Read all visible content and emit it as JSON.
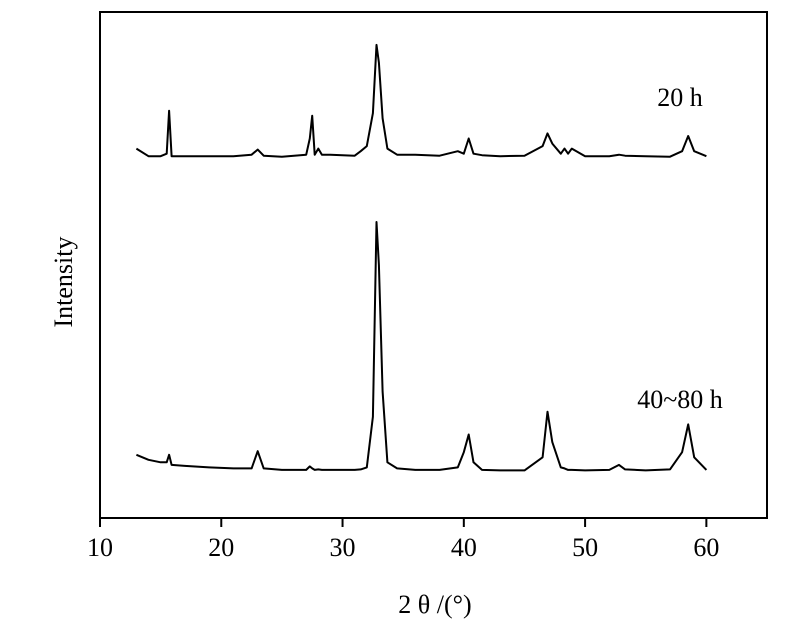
{
  "chart_data": {
    "type": "line",
    "x_label": "2 θ /(°)",
    "y_label": "Intensity",
    "xlim": [
      10,
      65
    ],
    "xticks": [
      10,
      20,
      30,
      40,
      50,
      60
    ],
    "ylim": [
      0,
      100
    ],
    "grid": false,
    "x": [
      13,
      14,
      15,
      15.5,
      15.7,
      15.9,
      17,
      19,
      21,
      22.5,
      23,
      23.5,
      25,
      27,
      27.3,
      27.5,
      27.7,
      28,
      28.3,
      29,
      31,
      31.5,
      32,
      32.5,
      32.8,
      33,
      33.3,
      33.7,
      34.5,
      36,
      38,
      39.5,
      40,
      40.4,
      40.8,
      41.5,
      43,
      45,
      46.5,
      46.9,
      47.3,
      48,
      48.3,
      48.6,
      48.9,
      50,
      52,
      52.8,
      53.3,
      55,
      57,
      58,
      58.5,
      59,
      60
    ],
    "series": [
      {
        "name": "20 h",
        "color": "#000000",
        "values": [
          73,
          71.5,
          71.5,
          72,
          80.5,
          71.5,
          71.5,
          71.5,
          71.5,
          71.8,
          72.8,
          71.6,
          71.4,
          71.8,
          75,
          79.5,
          71.8,
          73,
          71.8,
          71.8,
          71.6,
          72.5,
          73.5,
          80,
          93.5,
          90,
          79,
          73,
          71.8,
          71.8,
          71.6,
          72.5,
          72,
          75,
          72,
          71.7,
          71.5,
          71.6,
          73.5,
          76,
          74,
          72,
          73,
          72,
          73,
          71.5,
          71.5,
          71.8,
          71.6,
          71.5,
          71.4,
          72.5,
          75.5,
          72.5,
          71.5
        ]
      },
      {
        "name": "40~80 h",
        "color": "#000000",
        "values": [
          12.5,
          11.5,
          11,
          11,
          12.5,
          10.5,
          10.3,
          10,
          9.8,
          9.8,
          13.2,
          9.8,
          9.5,
          9.5,
          10.2,
          9.8,
          9.5,
          9.6,
          9.5,
          9.5,
          9.5,
          9.6,
          10,
          20,
          58.5,
          50,
          25,
          11,
          9.8,
          9.5,
          9.5,
          10,
          13,
          16.5,
          11,
          9.5,
          9.4,
          9.4,
          12,
          21,
          15,
          10,
          9.8,
          9.5,
          9.5,
          9.4,
          9.5,
          10.5,
          9.6,
          9.4,
          9.6,
          13,
          18.5,
          12,
          9.5
        ]
      }
    ]
  }
}
